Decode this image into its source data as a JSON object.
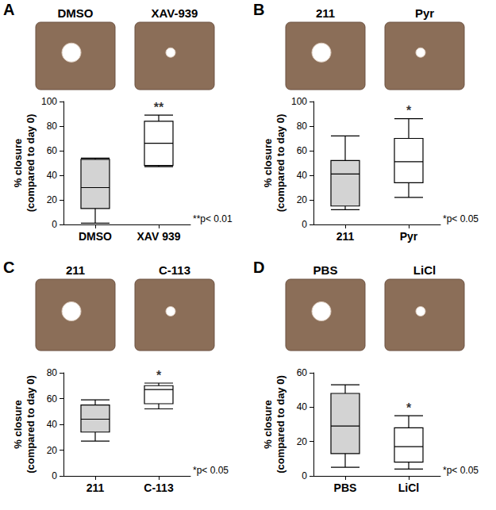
{
  "figure": {
    "panels": [
      {
        "label": "A",
        "photo_labels": [
          "DMSO",
          "XAV-939"
        ]
      },
      {
        "label": "B",
        "photo_labels": [
          "211",
          "Pyr"
        ]
      },
      {
        "label": "C",
        "photo_labels": [
          "211",
          "C-113"
        ]
      },
      {
        "label": "D",
        "photo_labels": [
          "PBS",
          "LiCl"
        ]
      }
    ]
  },
  "chart_data": [
    {
      "type": "boxplot",
      "categories": [
        "DMSO",
        "XAV 939"
      ],
      "values": [
        [
          1,
          13,
          30,
          53,
          54
        ],
        [
          47,
          48,
          66,
          84,
          89
        ]
      ],
      "colors": [
        "#d3d3d3",
        "#ffffff"
      ],
      "ylabel": "% closure\n(compared to day 0)",
      "ylim": [
        0,
        100
      ],
      "yticks": [
        0,
        20,
        40,
        60,
        80,
        100
      ],
      "grid": false,
      "annotations": [
        {
          "text": "**",
          "category": "XAV 939"
        },
        {
          "text": "**p< 0.01"
        }
      ]
    },
    {
      "type": "boxplot",
      "categories": [
        "211",
        "Pyr"
      ],
      "values": [
        [
          12,
          15,
          41,
          52,
          72
        ],
        [
          22,
          34,
          51,
          70,
          86
        ]
      ],
      "colors": [
        "#d3d3d3",
        "#ffffff"
      ],
      "ylabel": "% closure\n(compared to day 0)",
      "ylim": [
        0,
        100
      ],
      "yticks": [
        0,
        20,
        40,
        60,
        80,
        100
      ],
      "grid": false,
      "annotations": [
        {
          "text": "*",
          "category": "Pyr"
        },
        {
          "text": "*p< 0.05"
        }
      ]
    },
    {
      "type": "boxplot",
      "categories": [
        "211",
        "C-113"
      ],
      "values": [
        [
          27,
          34,
          44,
          55,
          59
        ],
        [
          52,
          56,
          67,
          70,
          72
        ]
      ],
      "colors": [
        "#d3d3d3",
        "#ffffff"
      ],
      "ylabel": "% closure\n(compared to day 0)",
      "ylim": [
        0,
        80
      ],
      "yticks": [
        0,
        20,
        40,
        60,
        80
      ],
      "grid": false,
      "annotations": [
        {
          "text": "*",
          "category": "C-113"
        },
        {
          "text": "*p< 0.05"
        }
      ]
    },
    {
      "type": "boxplot",
      "categories": [
        "PBS",
        "LiCl"
      ],
      "values": [
        [
          5,
          13,
          29,
          48,
          53
        ],
        [
          4,
          8,
          17,
          28,
          35
        ]
      ],
      "colors": [
        "#d3d3d3",
        "#ffffff"
      ],
      "ylabel": "% closure\n(compared to day 0)",
      "ylim": [
        0,
        60
      ],
      "yticks": [
        0,
        20,
        40,
        60
      ],
      "grid": false,
      "annotations": [
        {
          "text": "*",
          "category": "LiCl"
        },
        {
          "text": "*p< 0.05"
        }
      ]
    }
  ]
}
